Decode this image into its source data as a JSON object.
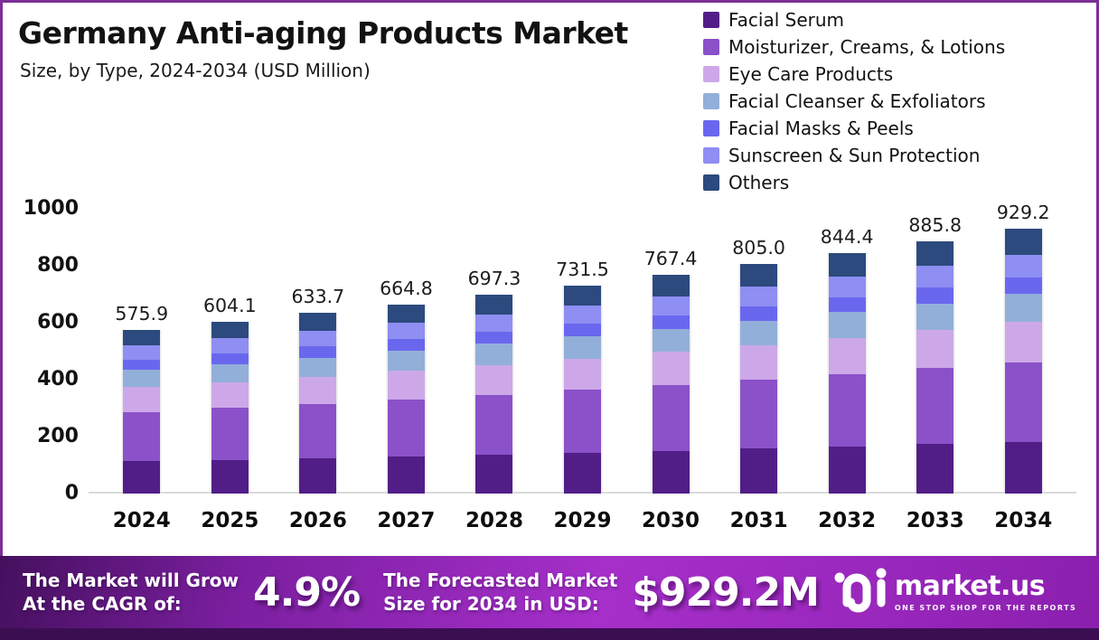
{
  "header": {
    "title": "Germany Anti-aging Products Market",
    "subtitle": "Size, by Type, 2024-2034 (USD Million)"
  },
  "colors": {
    "frame_border": "#7D2E96",
    "banner_gradient_start": "#45105E",
    "banner_gradient_mid": "#A62FCA",
    "banner_gradient_end": "#8A1FAE",
    "bottom_strip": "#3B0E52",
    "axis_text": "#121212",
    "baseline": "#DADADA"
  },
  "chart_data": {
    "type": "bar",
    "stacked": true,
    "title": "Germany Anti-aging Products Market Size, by Type, 2024-2034 (USD Million)",
    "xlabel": "",
    "ylabel": "",
    "ylim": [
      0,
      1000
    ],
    "yticks": [
      0,
      200,
      400,
      600,
      800,
      1000
    ],
    "grid": false,
    "legend_position": "top-right",
    "x": [
      2024,
      2025,
      2026,
      2027,
      2028,
      2029,
      2030,
      2031,
      2032,
      2033,
      2034
    ],
    "totals": [
      575.9,
      604.1,
      633.7,
      664.8,
      697.3,
      731.5,
      767.4,
      805.0,
      844.4,
      885.8,
      929.2
    ],
    "series": [
      {
        "name": "Facial Serum",
        "color": "#511E87",
        "values": [
          112.9,
          118.4,
          124.2,
          130.3,
          136.7,
          143.4,
          150.4,
          157.8,
          165.5,
          173.6,
          182.1
        ]
      },
      {
        "name": "Moisturizer, Creams, & Lotions",
        "color": "#8A51C9",
        "values": [
          173.3,
          181.8,
          190.7,
          200.1,
          209.9,
          220.2,
          231.0,
          242.3,
          254.2,
          266.6,
          279.7
        ]
      },
      {
        "name": "Eye Care Products",
        "color": "#CDA8E8",
        "values": [
          87.0,
          91.2,
          95.7,
          100.4,
          105.3,
          110.5,
          115.9,
          121.6,
          127.5,
          133.8,
          140.3
        ]
      },
      {
        "name": "Facial Cleanser & Exfoliators",
        "color": "#92AFD9",
        "values": [
          61.0,
          64.0,
          67.2,
          70.5,
          73.9,
          77.5,
          81.3,
          85.3,
          89.5,
          93.9,
          98.5
        ]
      },
      {
        "name": "Facial Masks & Peels",
        "color": "#6A67EF",
        "values": [
          36.3,
          38.1,
          39.9,
          41.9,
          43.9,
          46.1,
          48.3,
          50.7,
          53.2,
          55.8,
          58.5
        ]
      },
      {
        "name": "Sunscreen & Sun Protection",
        "color": "#8F8EF2",
        "values": [
          49.5,
          52.0,
          54.5,
          57.2,
          60.0,
          62.9,
          66.0,
          69.2,
          72.6,
          76.2,
          79.9
        ]
      },
      {
        "name": "Others",
        "color": "#2C4A7D",
        "values": [
          55.9,
          58.6,
          61.5,
          64.5,
          67.6,
          71.0,
          74.4,
          78.1,
          81.9,
          85.9,
          90.1
        ]
      }
    ]
  },
  "banner": {
    "cagr_label_1": "The Market will Grow",
    "cagr_label_2": "At the CAGR of:",
    "cagr_value": "4.9%",
    "forecast_label_1": "The Forecasted Market",
    "forecast_label_2": "Size for 2034 in USD:",
    "forecast_value": "$929.2M",
    "logo": {
      "name": "market.us",
      "tagline": "ONE STOP SHOP FOR THE REPORTS",
      "mark_icon": "market-us-wave-mark"
    }
  }
}
